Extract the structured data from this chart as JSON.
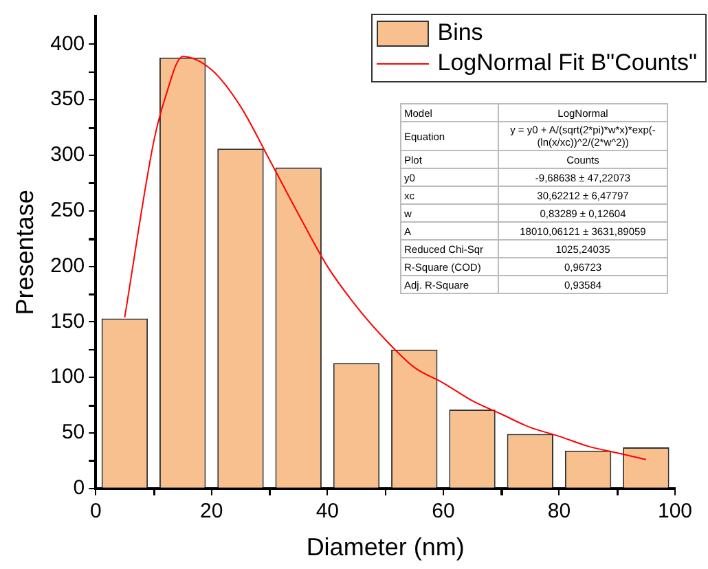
{
  "chart_data": {
    "type": "histogram",
    "xlabel": "Diameter (nm)",
    "ylabel": "Presentase",
    "bins": [
      0,
      10,
      20,
      30,
      40,
      50,
      60,
      70,
      80,
      90,
      100
    ],
    "series": [
      {
        "name": "Bins",
        "color": "#f9c08f",
        "values": [
          153,
          388,
          306,
          289,
          113,
          125,
          71,
          49,
          34,
          37
        ]
      },
      {
        "name": "LogNormal Fit B\"Counts\"",
        "type": "line",
        "color": "#ff0000",
        "marker": "none",
        "x": [
          5,
          10,
          12,
          15,
          20,
          25,
          30,
          35,
          40,
          45,
          50,
          55,
          60,
          65,
          70,
          75,
          80,
          85,
          90,
          95
        ],
        "values": [
          154,
          312,
          352,
          389,
          377,
          344,
          296,
          247,
          200,
          164,
          134,
          109,
          95,
          79,
          67,
          55,
          47,
          38,
          32,
          26
        ]
      }
    ],
    "xlim": [
      0,
      100
    ],
    "ylim": [
      0,
      425
    ],
    "xticks": [
      0,
      {
        "value": 10,
        "label": null
      },
      20,
      {
        "value": 30,
        "label": null
      },
      40,
      {
        "value": 50,
        "label": null
      },
      60,
      {
        "value": 70,
        "label": null
      },
      80,
      {
        "value": 90,
        "label": null
      },
      100
    ],
    "yticks": [
      0,
      {
        "value": 25,
        "label": null
      },
      50,
      {
        "value": 75,
        "label": null
      },
      100,
      {
        "value": 125,
        "label": null
      },
      150,
      {
        "value": 175,
        "label": null
      },
      200,
      {
        "value": 225,
        "label": null
      },
      250,
      {
        "value": 275,
        "label": null
      },
      300,
      {
        "value": 325,
        "label": null
      },
      350,
      {
        "value": 375,
        "label": null
      },
      400
    ],
    "grid": false,
    "legend": "top right",
    "annotations": [
      "Model",
      "LogNormal",
      "Equation",
      "y = y0 + A/(sqrt(2*pi)*w*x)*exp(-(ln(x/xc))^2/(2*w^2))",
      "Plot",
      "Counts",
      "y0",
      "-9,68638 ± 47,22073",
      "xc",
      "30,62212 ± 6,47797",
      "w",
      "0,83289 ± 0,12604",
      "A",
      "18010,06121 ± 3631,89059",
      "Reduced Chi-Sqr",
      "1025,24035",
      "R-Square (COD)",
      "0,96723",
      "Adj. R-Square",
      "0,93584"
    ]
  }
}
